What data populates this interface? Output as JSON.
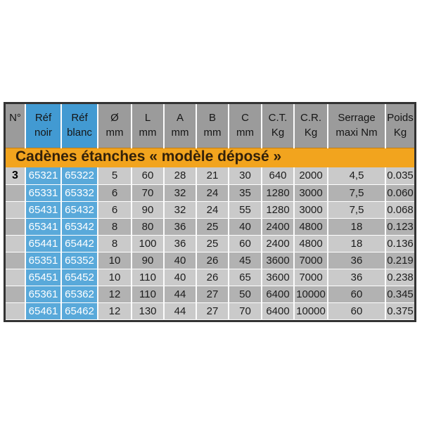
{
  "table": {
    "section_title": "Cadènes étanches « modèle déposé »",
    "columns": [
      {
        "id": "no",
        "line1": "N°",
        "line2": "",
        "blue": false
      },
      {
        "id": "ref-noir",
        "line1": "Réf",
        "line2": "noir",
        "blue": true
      },
      {
        "id": "ref-blanc",
        "line1": "Réf",
        "line2": "blanc",
        "blue": true
      },
      {
        "id": "diametre-mm",
        "line1": "Ø",
        "line2": "mm",
        "blue": false
      },
      {
        "id": "l-mm",
        "line1": "L",
        "line2": "mm",
        "blue": false
      },
      {
        "id": "a-mm",
        "line1": "A",
        "line2": "mm",
        "blue": false
      },
      {
        "id": "b-mm",
        "line1": "B",
        "line2": "mm",
        "blue": false
      },
      {
        "id": "c-mm",
        "line1": "C",
        "line2": "mm",
        "blue": false
      },
      {
        "id": "ct-kg",
        "line1": "C.T.",
        "line2": "Kg",
        "blue": false
      },
      {
        "id": "cr-kg",
        "line1": "C.R.",
        "line2": "Kg",
        "blue": false
      },
      {
        "id": "serrage",
        "line1": "Serrage",
        "line2": "maxi Nm",
        "blue": false
      },
      {
        "id": "poids-kg",
        "line1": "Poids",
        "line2": "Kg",
        "blue": false
      }
    ],
    "rows": [
      [
        "3",
        "65321",
        "65322",
        "5",
        "60",
        "28",
        "21",
        "30",
        "640",
        "2000",
        "4,5",
        "0.035"
      ],
      [
        "",
        "65331",
        "65332",
        "6",
        "70",
        "32",
        "24",
        "35",
        "1280",
        "3000",
        "7,5",
        "0.060"
      ],
      [
        "",
        "65431",
        "65432",
        "6",
        "90",
        "32",
        "24",
        "55",
        "1280",
        "3000",
        "7,5",
        "0.068"
      ],
      [
        "",
        "65341",
        "65342",
        "8",
        "80",
        "36",
        "25",
        "40",
        "2400",
        "4800",
        "18",
        "0.123"
      ],
      [
        "",
        "65441",
        "65442",
        "8",
        "100",
        "36",
        "25",
        "60",
        "2400",
        "4800",
        "18",
        "0.136"
      ],
      [
        "",
        "65351",
        "65352",
        "10",
        "90",
        "40",
        "26",
        "45",
        "3600",
        "7000",
        "36",
        "0.219"
      ],
      [
        "",
        "65451",
        "65452",
        "10",
        "110",
        "40",
        "26",
        "65",
        "3600",
        "7000",
        "36",
        "0.238"
      ],
      [
        "",
        "65361",
        "65362",
        "12",
        "110",
        "44",
        "27",
        "50",
        "6400",
        "10000",
        "60",
        "0.345"
      ],
      [
        "",
        "65461",
        "65462",
        "12",
        "130",
        "44",
        "27",
        "70",
        "6400",
        "10000",
        "60",
        "0.375"
      ]
    ],
    "colors": {
      "header_gray": "#9b9b9b",
      "header_blue": "#429ad2",
      "data_blue": "#59a9da",
      "banner_orange": "#f2a41e",
      "banner_text": "#33210a",
      "row_light": "#cacaca",
      "row_dark": "#b2b2b2",
      "table_border": "#333333"
    }
  }
}
